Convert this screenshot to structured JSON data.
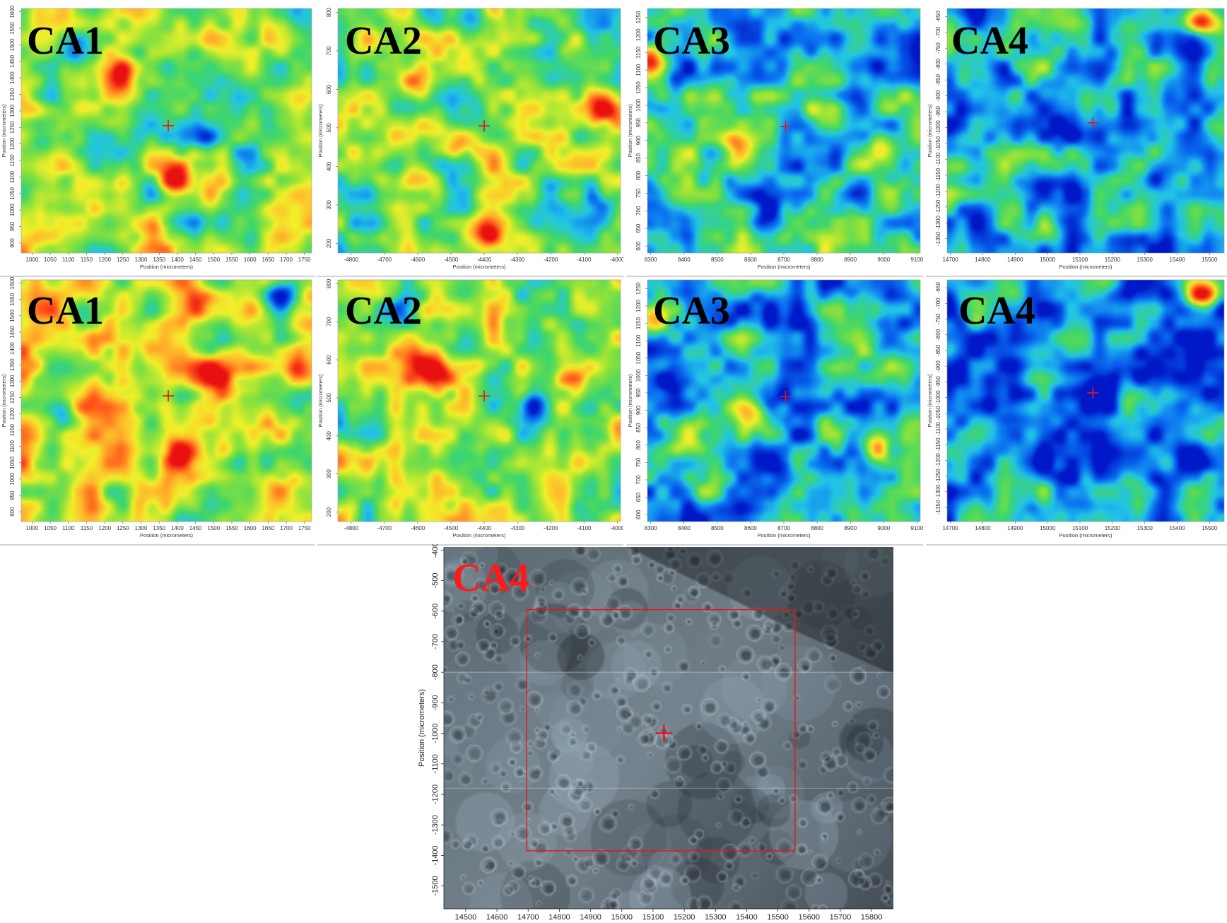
{
  "colors": {
    "label_black": "#000000",
    "label_red": "#ff1a1a",
    "marker_red": "#e8141a",
    "scale": [
      "#0018c8",
      "#0a6cf0",
      "#22c4e8",
      "#3fd66a",
      "#8ee23a",
      "#f2f02a",
      "#ffb22a",
      "#ff5a1a",
      "#e81010"
    ]
  },
  "chart_data": [
    {
      "type": "heatmap",
      "id": "top-ca1",
      "panel_label": "CA1",
      "level": 0.48,
      "xlabel": "Position (micrometers)",
      "ylabel": "Position (micrometers)",
      "x_ticks": [
        1000,
        1050,
        1100,
        1150,
        1200,
        1250,
        1300,
        1350,
        1400,
        1450,
        1500,
        1550,
        1600,
        1650,
        1700,
        1750
      ],
      "y_ticks": [
        900,
        950,
        1000,
        1050,
        1100,
        1150,
        1200,
        1250,
        1300,
        1350,
        1400,
        1450,
        1500,
        1550,
        1600
      ],
      "xlim": [
        970,
        1770
      ],
      "ylim": [
        870,
        1610
      ],
      "marker": [
        1375,
        1255
      ],
      "hotspots": [
        [
          1395,
          1085,
          0.55
        ],
        [
          1240,
          1400,
          0.35
        ],
        [
          1750,
          1330,
          0.3
        ],
        [
          1340,
          920,
          0.3
        ],
        [
          1110,
          1480,
          -0.35
        ],
        [
          1460,
          1220,
          -0.3
        ],
        [
          1030,
          1200,
          -0.3
        ]
      ]
    },
    {
      "type": "heatmap",
      "id": "top-ca2",
      "panel_label": "CA2",
      "level": 0.46,
      "xlabel": "Position (micrometers)",
      "ylabel": "Position (micrometers)",
      "x_ticks": [
        -4800,
        -4700,
        -4600,
        -4500,
        -4400,
        -4300,
        -4200,
        -4100,
        -4000
      ],
      "y_ticks": [
        200,
        300,
        400,
        500,
        600,
        700,
        800
      ],
      "xlim": [
        -4840,
        -3990
      ],
      "ylim": [
        175,
        810
      ],
      "marker": [
        -4400,
        505
      ],
      "hotspots": [
        [
          -4040,
          545,
          0.55
        ],
        [
          -4470,
          460,
          0.5
        ],
        [
          -4400,
          225,
          0.45
        ],
        [
          -4610,
          620,
          0.35
        ],
        [
          -4590,
          390,
          0.35
        ],
        [
          -4130,
          720,
          0.3
        ],
        [
          -4440,
          780,
          -0.35
        ],
        [
          -4200,
          330,
          -0.35
        ],
        [
          -4040,
          300,
          -0.3
        ]
      ]
    },
    {
      "type": "heatmap",
      "id": "top-ca3",
      "panel_label": "CA3",
      "level": 0.3,
      "xlabel": "Position (micrometers)",
      "ylabel": "Position (micrometers)",
      "x_ticks": [
        8300,
        8400,
        8500,
        8600,
        8700,
        8800,
        8900,
        9000,
        9100
      ],
      "y_ticks": [
        600,
        650,
        700,
        750,
        800,
        850,
        900,
        950,
        1000,
        1050,
        1100,
        1150,
        1200,
        1250
      ],
      "xlim": [
        8290,
        9110
      ],
      "ylim": [
        580,
        1275
      ],
      "marker": [
        8705,
        940
      ],
      "hotspots": [
        [
          8300,
          1140,
          0.6
        ],
        [
          9000,
          870,
          0.5
        ],
        [
          8560,
          885,
          0.4
        ],
        [
          8430,
          850,
          0.3
        ],
        [
          8820,
          980,
          0.25
        ],
        [
          8650,
          700,
          -0.25
        ],
        [
          8950,
          1120,
          -0.2
        ]
      ]
    },
    {
      "type": "heatmap",
      "id": "top-ca4",
      "panel_label": "CA4",
      "level": 0.24,
      "xlabel": "Position (micrometers)",
      "ylabel": "Position (micrometers)",
      "x_ticks": [
        14700,
        14800,
        14900,
        15000,
        15100,
        15200,
        15300,
        15400,
        15500
      ],
      "y_ticks": [
        -650,
        -700,
        -750,
        -800,
        -850,
        -900,
        -950,
        -1000,
        -1050,
        -1100,
        -1150,
        -1200,
        -1250,
        -1300,
        -1350
      ],
      "xlim": [
        14690,
        15545
      ],
      "ylim": [
        -1395,
        -625
      ],
      "marker": [
        15140,
        -985
      ],
      "hotspots": [
        [
          15480,
          -660,
          0.65
        ],
        [
          15000,
          -1330,
          0.3
        ],
        [
          14900,
          -800,
          0.15
        ],
        [
          15350,
          -1150,
          -0.2
        ]
      ]
    },
    {
      "type": "heatmap",
      "id": "bottom-ca1",
      "panel_label": "CA1",
      "level": 0.6,
      "xlabel": "Position (micrometers)",
      "ylabel": "Position (micrometers)",
      "x_ticks": [
        1000,
        1050,
        1100,
        1150,
        1200,
        1250,
        1300,
        1350,
        1400,
        1450,
        1500,
        1550,
        1600,
        1650,
        1700,
        1750
      ],
      "y_ticks": [
        900,
        950,
        1000,
        1050,
        1100,
        1150,
        1200,
        1250,
        1300,
        1350,
        1400,
        1450,
        1500,
        1550,
        1600
      ],
      "xlim": [
        970,
        1770
      ],
      "ylim": [
        870,
        1610
      ],
      "marker": [
        1375,
        1255
      ],
      "hotspots": [
        [
          1400,
          1085,
          0.4
        ],
        [
          1460,
          1530,
          0.3
        ],
        [
          1730,
          1330,
          0.25
        ],
        [
          1500,
          1320,
          0.2
        ],
        [
          1690,
          1570,
          -0.6
        ],
        [
          1080,
          1200,
          -0.25
        ]
      ]
    },
    {
      "type": "heatmap",
      "id": "bottom-ca2",
      "panel_label": "CA2",
      "level": 0.52,
      "xlabel": "Position (micrometers)",
      "ylabel": "Position (micrometers)",
      "x_ticks": [
        -4800,
        -4700,
        -4600,
        -4500,
        -4400,
        -4300,
        -4200,
        -4100,
        -4000
      ],
      "y_ticks": [
        200,
        300,
        400,
        500,
        600,
        700,
        800
      ],
      "xlim": [
        -4840,
        -3990
      ],
      "ylim": [
        175,
        810
      ],
      "marker": [
        -4400,
        505
      ],
      "hotspots": [
        [
          -4550,
          560,
          0.45
        ],
        [
          -4600,
          620,
          0.35
        ],
        [
          -4140,
          560,
          0.3
        ],
        [
          -4250,
          480,
          -0.55
        ],
        [
          -4640,
          740,
          -0.3
        ],
        [
          -4380,
          260,
          -0.25
        ],
        [
          -4080,
          740,
          0.2
        ]
      ]
    },
    {
      "type": "heatmap",
      "id": "bottom-ca3",
      "panel_label": "CA3",
      "level": 0.26,
      "xlabel": "Position (micrometers)",
      "ylabel": "Position (micrometers)",
      "x_ticks": [
        8300,
        8400,
        8500,
        8600,
        8700,
        8800,
        8900,
        9000,
        9100
      ],
      "y_ticks": [
        600,
        650,
        700,
        750,
        800,
        850,
        900,
        950,
        1000,
        1050,
        1100,
        1150,
        1200,
        1250
      ],
      "xlim": [
        8290,
        9110
      ],
      "ylim": [
        580,
        1275
      ],
      "marker": [
        8705,
        940
      ],
      "hotspots": [
        [
          8300,
          1160,
          0.6
        ],
        [
          8980,
          790,
          0.55
        ],
        [
          8610,
          880,
          0.4
        ],
        [
          8420,
          820,
          0.3
        ],
        [
          8850,
          990,
          0.25
        ],
        [
          8360,
          990,
          -0.3
        ],
        [
          8700,
          700,
          -0.2
        ]
      ]
    },
    {
      "type": "heatmap",
      "id": "bottom-ca4",
      "panel_label": "CA4",
      "level": 0.2,
      "xlabel": "Position (micrometers)",
      "ylabel": "Position (micrometers)",
      "x_ticks": [
        14700,
        14800,
        14900,
        15000,
        15100,
        15200,
        15300,
        15400,
        15500
      ],
      "y_ticks": [
        -650,
        -700,
        -750,
        -800,
        -850,
        -900,
        -950,
        -1000,
        -1050,
        -1100,
        -1150,
        -1200,
        -1250,
        -1300,
        -1350
      ],
      "xlim": [
        14690,
        15545
      ],
      "ylim": [
        -1395,
        -625
      ],
      "marker": [
        15140,
        -985
      ],
      "hotspots": [
        [
          15480,
          -670,
          0.65
        ],
        [
          14780,
          -700,
          0.2
        ],
        [
          15300,
          -1300,
          0.15
        ],
        [
          15140,
          -980,
          -0.3
        ]
      ]
    }
  ],
  "micrograph": {
    "panel_label": "CA4",
    "xlabel": "Position (micrometers)",
    "ylabel": "Position (micrometers)",
    "x_ticks": [
      14500,
      14600,
      14700,
      14800,
      14900,
      15000,
      15100,
      15200,
      15300,
      15400,
      15500,
      15600,
      15700,
      15800
    ],
    "y_ticks": [
      -400,
      -500,
      -600,
      -700,
      -800,
      -900,
      -1000,
      -1100,
      -1200,
      -1300,
      -1400,
      -1500
    ],
    "xlim": [
      14430,
      15870
    ],
    "ylim": [
      -1575,
      -390
    ],
    "marker": [
      15135,
      -1000
    ],
    "region_x": [
      14695,
      15555
    ],
    "region_y": [
      -1385,
      -595
    ]
  }
}
